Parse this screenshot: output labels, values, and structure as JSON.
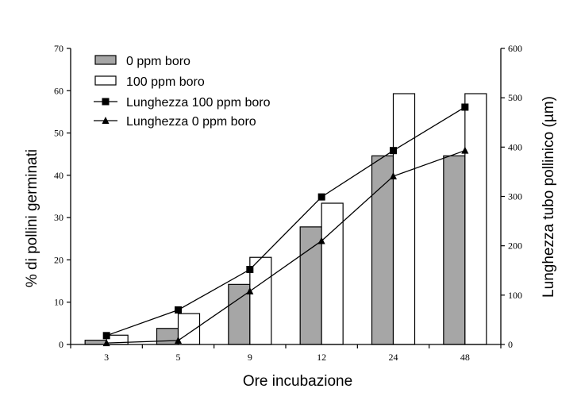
{
  "chart_data": {
    "type": "bar",
    "xlabel": "Ore incubazione",
    "ylabel": "% di pollini germinati",
    "ylabel_right": "Lunghezza tubo pollinico (µm)",
    "categories": [
      "3",
      "5",
      "9",
      "12",
      "24",
      "48"
    ],
    "ylim": [
      0,
      70
    ],
    "yticks": [
      0,
      10,
      20,
      30,
      40,
      50,
      60,
      70
    ],
    "ylim_right": [
      0,
      600
    ],
    "yticks_right": [
      0,
      100,
      200,
      300,
      400,
      500,
      600
    ],
    "bar_series": [
      {
        "name": "0 ppm boro",
        "fill": "#a6a6a6",
        "values": [
          1,
          3.8,
          14.2,
          27.8,
          44.6,
          44.6
        ]
      },
      {
        "name": "100 ppm boro",
        "fill": "#ffffff",
        "values": [
          2.2,
          7.3,
          20.6,
          33.4,
          59.3,
          59.3
        ]
      }
    ],
    "line_series": [
      {
        "name": "Lunghezza 100 ppm boro",
        "marker": "square",
        "axis": "right",
        "values": [
          18,
          70,
          152,
          299,
          393,
          481
        ]
      },
      {
        "name": "Lunghezza 0 ppm boro",
        "marker": "triangle",
        "axis": "right",
        "values": [
          3,
          8,
          108,
          210,
          341,
          393
        ]
      }
    ],
    "legend_position": "top-left",
    "colors": {
      "axis": "#000000",
      "bar_gray": "#a6a6a6",
      "bar_white": "#ffffff",
      "line": "#000000"
    }
  }
}
